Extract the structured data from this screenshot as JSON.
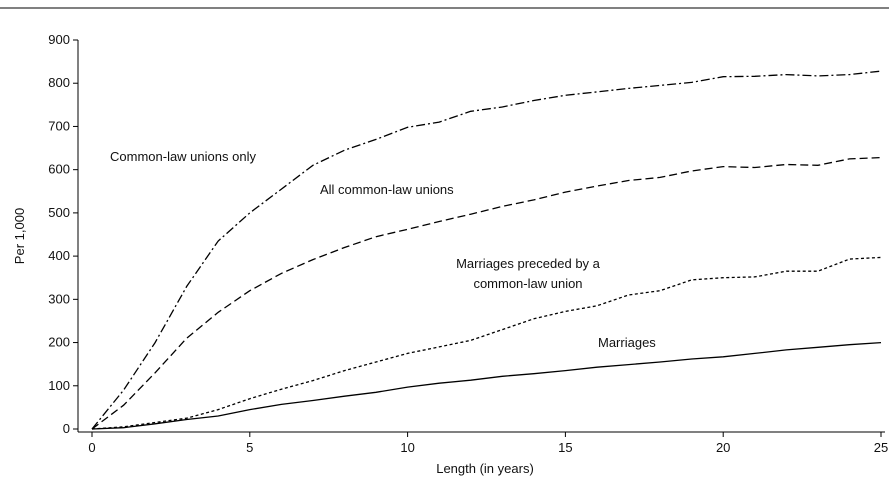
{
  "chart_data": {
    "type": "line",
    "x": [
      0,
      1,
      2,
      3,
      4,
      5,
      6,
      7,
      8,
      9,
      10,
      11,
      12,
      13,
      14,
      15,
      16,
      17,
      18,
      19,
      20,
      21,
      22,
      23,
      24,
      25
    ],
    "series": [
      {
        "name": "Common-law unions only",
        "color": "#000000",
        "dash": "dash-dot",
        "values": [
          0,
          90,
          200,
          330,
          435,
          500,
          555,
          610,
          645,
          670,
          698,
          710,
          735,
          745,
          760,
          772,
          780,
          788,
          795,
          802,
          815,
          816,
          820,
          817,
          820,
          828
        ]
      },
      {
        "name": "All common-law unions",
        "color": "#000000",
        "dash": "dashed",
        "values": [
          0,
          55,
          130,
          210,
          270,
          320,
          360,
          392,
          420,
          445,
          462,
          480,
          497,
          515,
          530,
          548,
          562,
          575,
          582,
          597,
          607,
          605,
          612,
          610,
          625,
          628
        ]
      },
      {
        "name": "Marriages preceded by a common-law union",
        "color": "#000000",
        "dash": "dotted",
        "values": [
          0,
          5,
          15,
          25,
          45,
          70,
          92,
          112,
          135,
          155,
          175,
          190,
          205,
          230,
          255,
          272,
          285,
          310,
          320,
          345,
          350,
          352,
          365,
          365,
          393,
          397
        ]
      },
      {
        "name": "Marriages",
        "color": "#000000",
        "dash": "solid",
        "values": [
          0,
          3,
          12,
          22,
          30,
          45,
          57,
          66,
          76,
          85,
          97,
          106,
          113,
          122,
          128,
          135,
          143,
          149,
          155,
          162,
          167,
          175,
          183,
          189,
          195,
          200
        ]
      }
    ],
    "x_label": "Length (in years)",
    "y_label": "Per 1,000",
    "xlim": [
      0,
      25
    ],
    "xticks": [
      0,
      5,
      10,
      15,
      20,
      25
    ],
    "ylim": [
      0,
      900
    ],
    "yticks": [
      0,
      100,
      200,
      300,
      400,
      500,
      600,
      700,
      800,
      900
    ],
    "grid": false
  }
}
